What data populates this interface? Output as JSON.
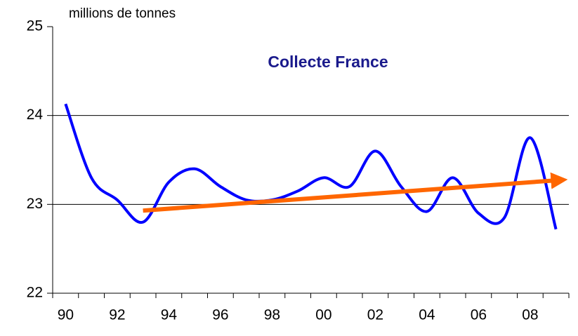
{
  "chart_data": {
    "type": "line",
    "title": "Collecte France",
    "y_label": "millions de tonnes",
    "categories": [
      "90",
      null,
      "92",
      null,
      "94",
      null,
      "96",
      null,
      "98",
      null,
      "00",
      null,
      "02",
      null,
      "04",
      null,
      "06",
      null,
      "08",
      null
    ],
    "series": [
      {
        "color": "#0000ff",
        "values": [
          24.13,
          23.3,
          23.05,
          22.8,
          23.25,
          23.4,
          23.2,
          23.05,
          23.05,
          23.15,
          23.3,
          23.2,
          23.6,
          23.2,
          22.92,
          23.3,
          22.9,
          22.85,
          23.75,
          22.72
        ]
      }
    ],
    "trend": {
      "from": 3,
      "to": 19,
      "values": [
        22.93,
        23.27
      ],
      "color": "#ff6600"
    },
    "ylim": [
      22,
      25
    ],
    "yticks": [
      22,
      23,
      24,
      25
    ],
    "grid": true
  }
}
